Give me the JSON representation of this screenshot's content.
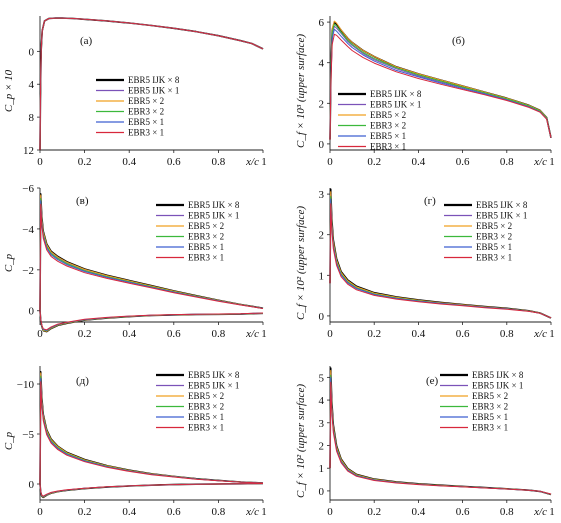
{
  "colors": {
    "EBR5 IJK × 8": "#000000",
    "EBR5 IJK × 1": "#7b52b8",
    "EBR5 × 2": "#f0a020",
    "EBR3 × 2": "#3cb83c",
    "EBR5 × 1": "#3f5fd0",
    "EBR3 × 1": "#d8283c"
  },
  "chart_data": [
    {
      "type": "line",
      "panel": "(а)",
      "xlabel": "x/c",
      "ylabel": "C_p × 10",
      "xlim": [
        0,
        1
      ],
      "ylim": [
        12,
        -4.3
      ],
      "y_inverted": true,
      "xticks": [
        0,
        0.2,
        0.4,
        0.6,
        0.8
      ],
      "xtick_labels": [
        "0",
        "0.2",
        "0.4",
        "0.6",
        "0.8"
      ],
      "x_end_label": "1",
      "yticks": [
        0,
        4,
        8,
        12
      ],
      "ytick_labels": [
        "0",
        "4",
        "8",
        "12"
      ],
      "legend": [
        "EBR5 IJK × 8",
        "EBR5 IJK × 1",
        "EBR5 × 2",
        "EBR3 × 2",
        "EBR5 × 1",
        "EBR3 × 1"
      ],
      "series_x": [
        0,
        0.002,
        0.005,
        0.01,
        0.02,
        0.04,
        0.07,
        0.1,
        0.15,
        0.2,
        0.3,
        0.4,
        0.5,
        0.6,
        0.7,
        0.8,
        0.9,
        0.95,
        1.0
      ],
      "series_y": [
        12,
        6,
        0,
        -2.5,
        -3.7,
        -4.0,
        -4.05,
        -4.05,
        -4.0,
        -3.9,
        -3.7,
        -3.45,
        -3.15,
        -2.8,
        -2.4,
        -1.9,
        -1.3,
        -0.95,
        -0.3
      ]
    },
    {
      "type": "line",
      "panel": "(б)",
      "xlabel": "x/c",
      "ylabel": "C_f × 10^3 (upper surface)",
      "xlim": [
        0,
        1
      ],
      "ylim": [
        -0.3,
        6.3
      ],
      "xticks": [
        0,
        0.2,
        0.4,
        0.6,
        0.8
      ],
      "xtick_labels": [
        "0",
        "0.2",
        "0.4",
        "0.6",
        "0.8"
      ],
      "x_end_label": "1",
      "yticks": [
        0,
        2,
        4,
        6
      ],
      "ytick_labels": [
        "0",
        "2",
        "4",
        "6"
      ],
      "legend": [
        "EBR5 IJK × 8",
        "EBR5 IJK × 1",
        "EBR5 × 2",
        "EBR3 × 2",
        "EBR5 × 1",
        "EBR3 × 1"
      ],
      "series_x": [
        0,
        0.004,
        0.01,
        0.02,
        0.03,
        0.05,
        0.08,
        0.1,
        0.15,
        0.2,
        0.3,
        0.4,
        0.5,
        0.6,
        0.7,
        0.8,
        0.9,
        0.95,
        0.98,
        1.0
      ],
      "series": [
        {
          "name": "EBR5 IJK × 8",
          "values": [
            0.2,
            3.5,
            5.6,
            6.0,
            5.9,
            5.6,
            5.2,
            5.0,
            4.6,
            4.3,
            3.8,
            3.45,
            3.15,
            2.85,
            2.55,
            2.25,
            1.9,
            1.65,
            1.3,
            0.3
          ]
        },
        {
          "name": "EBR5 IJK × 1",
          "values": [
            0.2,
            3.4,
            5.4,
            5.8,
            5.7,
            5.45,
            5.05,
            4.85,
            4.45,
            4.15,
            3.7,
            3.35,
            3.05,
            2.78,
            2.5,
            2.2,
            1.85,
            1.6,
            1.25,
            0.3
          ]
        },
        {
          "name": "EBR5 × 2",
          "values": [
            0.2,
            3.6,
            5.7,
            6.05,
            5.95,
            5.62,
            5.2,
            5.0,
            4.6,
            4.3,
            3.8,
            3.45,
            3.15,
            2.85,
            2.55,
            2.25,
            1.9,
            1.65,
            1.3,
            0.3
          ]
        },
        {
          "name": "EBR3 × 2",
          "values": [
            0.2,
            3.5,
            5.5,
            5.9,
            5.8,
            5.5,
            5.1,
            4.9,
            4.5,
            4.2,
            3.75,
            3.4,
            3.1,
            2.8,
            2.52,
            2.22,
            1.87,
            1.62,
            1.28,
            0.3
          ]
        },
        {
          "name": "EBR5 × 1",
          "values": [
            0.2,
            3.3,
            5.2,
            5.65,
            5.55,
            5.3,
            4.95,
            4.75,
            4.38,
            4.08,
            3.62,
            3.3,
            3.0,
            2.73,
            2.46,
            2.17,
            1.83,
            1.58,
            1.24,
            0.3
          ]
        },
        {
          "name": "EBR3 × 1",
          "values": [
            0.2,
            3.0,
            4.9,
            5.4,
            5.35,
            5.12,
            4.8,
            4.6,
            4.25,
            3.98,
            3.55,
            3.22,
            2.94,
            2.68,
            2.42,
            2.14,
            1.8,
            1.56,
            1.22,
            0.3
          ]
        }
      ]
    },
    {
      "type": "line",
      "panel": "(в)",
      "xlabel": "x/c",
      "ylabel": "C_p",
      "xlim": [
        0,
        1
      ],
      "ylim": [
        0.55,
        -6.0
      ],
      "y_inverted": true,
      "xticks": [
        0,
        0.2,
        0.4,
        0.6,
        0.8
      ],
      "xtick_labels": [
        "0",
        "0.2",
        "0.4",
        "0.6",
        "0.8"
      ],
      "x_end_label": "1",
      "yticks": [
        -6,
        -4,
        -2,
        0
      ],
      "ytick_labels": [
        "−6",
        "−4",
        "−2",
        "0"
      ],
      "legend": [
        "EBR5 IJK × 8",
        "EBR5 IJK × 1",
        "EBR5 × 2",
        "EBR3 × 2",
        "EBR5 × 1",
        "EBR3 × 1"
      ],
      "series_x": [
        0,
        0.003,
        0.008,
        0.015,
        0.03,
        0.05,
        0.08,
        0.12,
        0.2,
        0.3,
        0.4,
        0.5,
        0.6,
        0.7,
        0.8,
        0.9,
        1.0
      ],
      "upper_surface": [
        0,
        -5.6,
        -4.5,
        -3.8,
        -3.2,
        -2.85,
        -2.6,
        -2.35,
        -2.0,
        -1.7,
        -1.45,
        -1.2,
        -0.95,
        -0.72,
        -0.5,
        -0.3,
        -0.12
      ],
      "lower_surface": [
        0,
        0.45,
        0.75,
        0.95,
        1.0,
        0.85,
        0.7,
        0.6,
        0.45,
        0.35,
        0.28,
        0.23,
        0.2,
        0.18,
        0.17,
        0.16,
        0.12
      ]
    },
    {
      "type": "line",
      "panel": "(г)",
      "xlabel": "x/c",
      "ylabel": "C_f × 10^2 (upper surface)",
      "xlim": [
        0,
        1
      ],
      "ylim": [
        -0.15,
        3.15
      ],
      "xticks": [
        0,
        0.2,
        0.4,
        0.6,
        0.8
      ],
      "xtick_labels": [
        "0",
        "0.2",
        "0.4",
        "0.6",
        "0.8"
      ],
      "x_end_label": "1",
      "yticks": [
        0,
        1,
        2,
        3
      ],
      "ytick_labels": [
        "0",
        "1",
        "2",
        "3"
      ],
      "legend": [
        "EBR5 IJK × 8",
        "EBR5 IJK × 1",
        "EBR5 × 2",
        "EBR3 × 2",
        "EBR5 × 1",
        "EBR3 × 1"
      ],
      "series_x": [
        0,
        0.003,
        0.008,
        0.015,
        0.03,
        0.05,
        0.08,
        0.12,
        0.2,
        0.3,
        0.4,
        0.5,
        0.6,
        0.7,
        0.8,
        0.9,
        0.95,
        1.0
      ],
      "base_values": [
        0.8,
        3.0,
        2.3,
        1.8,
        1.35,
        1.05,
        0.85,
        0.7,
        0.55,
        0.45,
        0.38,
        0.32,
        0.27,
        0.22,
        0.18,
        0.12,
        0.07,
        -0.05
      ]
    },
    {
      "type": "line",
      "panel": "(д)",
      "xlabel": "x/c",
      "ylabel": "C_p",
      "xlim": [
        0,
        1
      ],
      "ylim": [
        1.6,
        -11.8
      ],
      "y_inverted": true,
      "xticks": [
        0,
        0.2,
        0.4,
        0.6,
        0.8
      ],
      "xtick_labels": [
        "0",
        "0.2",
        "0.4",
        "0.6",
        "0.8"
      ],
      "x_end_label": "1",
      "yticks": [
        -10,
        -5,
        0
      ],
      "ytick_labels": [
        "−10",
        "−5",
        "0"
      ],
      "legend": [
        "EBR5 IJK × 8",
        "EBR5 IJK × 1",
        "EBR5 × 2",
        "EBR3 × 2",
        "EBR5 × 1",
        "EBR3 × 1"
      ],
      "series_x": [
        0,
        0.003,
        0.008,
        0.015,
        0.03,
        0.05,
        0.08,
        0.12,
        0.2,
        0.3,
        0.4,
        0.5,
        0.6,
        0.7,
        0.8,
        0.9,
        1.0
      ],
      "upper_surface": [
        0,
        -11.0,
        -8.5,
        -6.8,
        -5.3,
        -4.4,
        -3.7,
        -3.1,
        -2.4,
        -1.8,
        -1.35,
        -1.0,
        -0.75,
        -0.52,
        -0.35,
        -0.2,
        -0.1
      ],
      "lower_surface": [
        0,
        0.8,
        1.2,
        1.3,
        1.1,
        0.9,
        0.75,
        0.62,
        0.45,
        0.3,
        0.2,
        0.12,
        0.06,
        0.02,
        0.0,
        -0.02,
        -0.05
      ]
    },
    {
      "type": "line",
      "panel": "(е)",
      "xlabel": "x/c",
      "ylabel": "C_f × 10^2 (upper surface)",
      "xlim": [
        0,
        1
      ],
      "ylim": [
        -0.4,
        5.5
      ],
      "xticks": [
        0,
        0.2,
        0.4,
        0.6,
        0.8
      ],
      "xtick_labels": [
        "0",
        "0.2",
        "0.4",
        "0.6",
        "0.8"
      ],
      "x_end_label": "1",
      "yticks": [
        0,
        1,
        2,
        3,
        4,
        5
      ],
      "ytick_labels": [
        "0",
        "1",
        "2",
        "3",
        "4",
        "5"
      ],
      "legend": [
        "EBR5 IJK × 8",
        "EBR5 IJK × 1",
        "EBR5 × 2",
        "EBR3 × 2",
        "EBR5 × 1",
        "EBR3 × 1"
      ],
      "series_x": [
        0,
        0.003,
        0.008,
        0.015,
        0.03,
        0.05,
        0.08,
        0.12,
        0.2,
        0.3,
        0.4,
        0.5,
        0.6,
        0.7,
        0.8,
        0.9,
        0.95,
        1.0
      ],
      "base_values": [
        1.0,
        5.2,
        3.8,
        2.8,
        1.9,
        1.35,
        0.95,
        0.7,
        0.5,
        0.38,
        0.3,
        0.24,
        0.19,
        0.14,
        0.09,
        0.03,
        -0.02,
        -0.15
      ]
    }
  ]
}
